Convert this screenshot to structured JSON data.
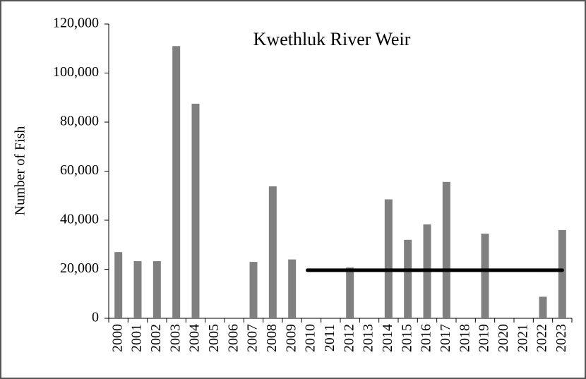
{
  "chart_data": {
    "type": "bar",
    "title": "Kwethluk River Weir",
    "ylabel": "Number of Fish",
    "categories": [
      "2000",
      "2001",
      "2002",
      "2003",
      "2004",
      "2005",
      "2006",
      "2007",
      "2008",
      "2009",
      "2010",
      "2011",
      "2012",
      "2013",
      "2014",
      "2015",
      "2016",
      "2017",
      "2018",
      "2019",
      "2020",
      "2021",
      "2022",
      "2023"
    ],
    "values": [
      27000,
      23300,
      23300,
      111000,
      87500,
      null,
      null,
      23000,
      53800,
      24000,
      null,
      null,
      20700,
      null,
      48500,
      32000,
      38300,
      55600,
      null,
      34500,
      null,
      null,
      8800,
      36000
    ],
    "color": "#808080",
    "ylim": [
      0,
      120000
    ],
    "yticks": [
      0,
      {
        "value": 20000,
        "label": "20,000"
      },
      {
        "value": 40000,
        "label": "40,000"
      },
      {
        "value": 60000,
        "label": "60,000"
      },
      {
        "value": 80000,
        "label": "80,000"
      },
      {
        "value": 100000,
        "label": "100,000"
      },
      {
        "value": 120000,
        "label": "120,000"
      }
    ],
    "grid": false,
    "reference_line": {
      "value": 19600,
      "from": "2010",
      "to": "2023",
      "color": "#000000"
    }
  }
}
